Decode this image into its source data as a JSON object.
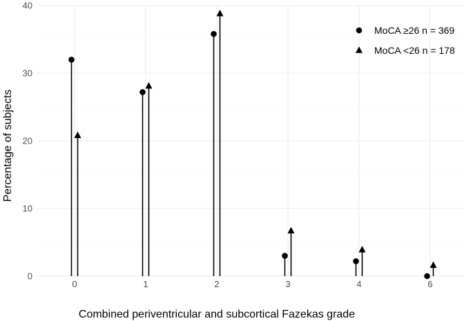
{
  "chart_data": {
    "type": "lollipop",
    "title": "",
    "xlabel": "Combined periventricular and subcortical Fazekas grade",
    "ylabel": "Percentage of subjects",
    "categories": [
      "0",
      "1",
      "2",
      "3",
      "4",
      "6"
    ],
    "ylim": [
      0,
      40
    ],
    "yticks": [
      0,
      10,
      20,
      30,
      40
    ],
    "grid": true,
    "legend_position": "top-right",
    "series": [
      {
        "name": "MoCA ≥26 n = 369",
        "marker": "circle",
        "values": [
          32,
          27.2,
          35.8,
          3.0,
          2.2,
          0.0
        ]
      },
      {
        "name": "MoCA <26 n = 178",
        "marker": "triangle",
        "values": [
          20.8,
          28.1,
          38.8,
          6.7,
          3.9,
          1.6
        ]
      }
    ]
  }
}
